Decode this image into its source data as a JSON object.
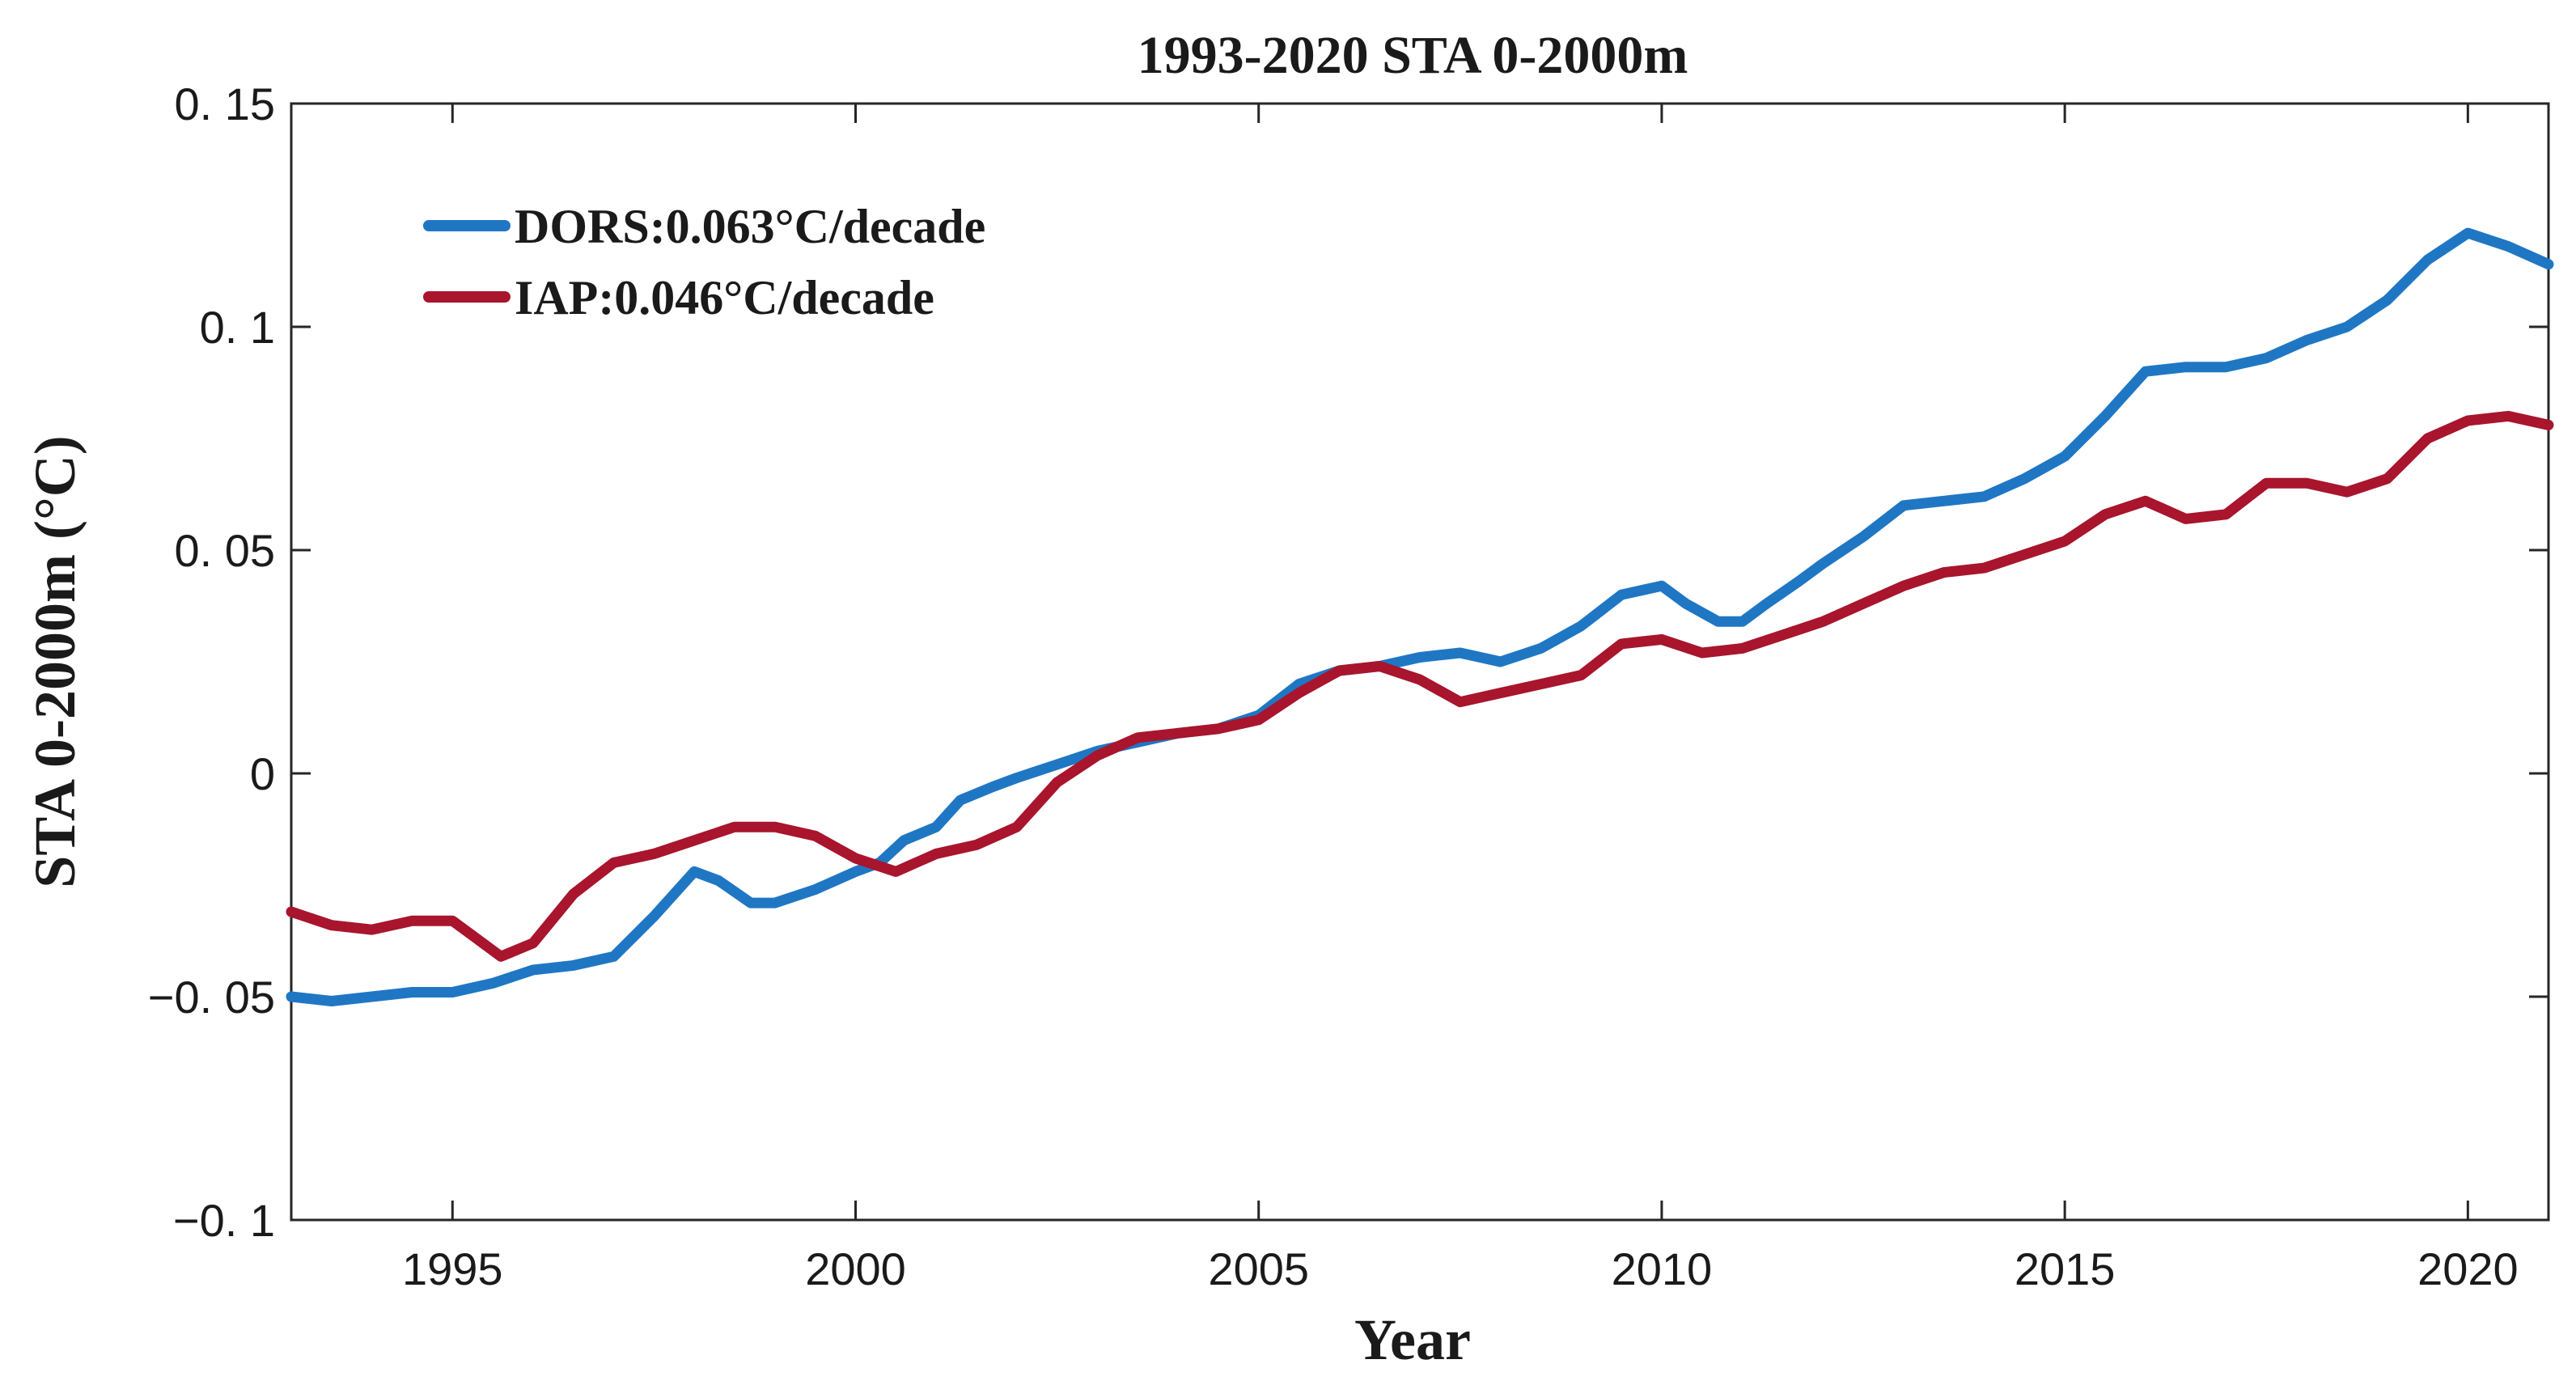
{
  "chart_data": {
    "type": "line",
    "title": "1993-2020 STA 0-2000m",
    "xlabel": "Year",
    "ylabel": "STA 0-2000m (°C)",
    "xlim": [
      1993,
      2021
    ],
    "ylim": [
      -0.1,
      0.15
    ],
    "xticks": [
      1995,
      2000,
      2005,
      2010,
      2015,
      2020
    ],
    "xtick_labels": [
      "1995",
      "2000",
      "2005",
      "2010",
      "2015",
      "2020"
    ],
    "yticks": [
      -0.1,
      -0.05,
      0,
      0.05,
      0.1,
      0.15
    ],
    "ytick_labels": [
      "−0. 1",
      "−0. 05",
      "0",
      "0. 05",
      "0. 1",
      "0. 15"
    ],
    "grid": false,
    "legend_position": "top-left",
    "series": [
      {
        "name": "DORS:0.063°C/decade",
        "color": "#1f77c4",
        "points": [
          [
            1993.0,
            -0.05
          ],
          [
            1993.5,
            -0.051
          ],
          [
            1994.0,
            -0.05
          ],
          [
            1994.5,
            -0.049
          ],
          [
            1995.0,
            -0.049
          ],
          [
            1995.5,
            -0.047
          ],
          [
            1996.0,
            -0.044
          ],
          [
            1996.5,
            -0.043
          ],
          [
            1997.0,
            -0.041
          ],
          [
            1997.5,
            -0.032
          ],
          [
            1998.0,
            -0.022
          ],
          [
            1998.3,
            -0.024
          ],
          [
            1998.7,
            -0.029
          ],
          [
            1999.0,
            -0.029
          ],
          [
            1999.5,
            -0.026
          ],
          [
            2000.0,
            -0.022
          ],
          [
            2000.3,
            -0.02
          ],
          [
            2000.6,
            -0.015
          ],
          [
            2001.0,
            -0.012
          ],
          [
            2001.3,
            -0.006
          ],
          [
            2001.7,
            -0.003
          ],
          [
            2002.0,
            -0.001
          ],
          [
            2002.5,
            0.002
          ],
          [
            2003.0,
            0.005
          ],
          [
            2003.5,
            0.007
          ],
          [
            2004.0,
            0.009
          ],
          [
            2004.5,
            0.01
          ],
          [
            2005.0,
            0.013
          ],
          [
            2005.5,
            0.02
          ],
          [
            2006.0,
            0.023
          ],
          [
            2006.5,
            0.024
          ],
          [
            2007.0,
            0.026
          ],
          [
            2007.5,
            0.027
          ],
          [
            2008.0,
            0.025
          ],
          [
            2008.5,
            0.028
          ],
          [
            2009.0,
            0.033
          ],
          [
            2009.5,
            0.04
          ],
          [
            2010.0,
            0.042
          ],
          [
            2010.3,
            0.038
          ],
          [
            2010.7,
            0.034
          ],
          [
            2011.0,
            0.034
          ],
          [
            2011.3,
            0.038
          ],
          [
            2011.7,
            0.043
          ],
          [
            2012.0,
            0.047
          ],
          [
            2012.5,
            0.053
          ],
          [
            2013.0,
            0.06
          ],
          [
            2013.5,
            0.061
          ],
          [
            2014.0,
            0.062
          ],
          [
            2014.5,
            0.066
          ],
          [
            2015.0,
            0.071
          ],
          [
            2015.5,
            0.08
          ],
          [
            2016.0,
            0.09
          ],
          [
            2016.5,
            0.091
          ],
          [
            2017.0,
            0.091
          ],
          [
            2017.5,
            0.093
          ],
          [
            2018.0,
            0.097
          ],
          [
            2018.5,
            0.1
          ],
          [
            2019.0,
            0.106
          ],
          [
            2019.5,
            0.115
          ],
          [
            2020.0,
            0.121
          ],
          [
            2020.5,
            0.118
          ],
          [
            2021.0,
            0.114
          ]
        ]
      },
      {
        "name": "IAP:0.046°C/decade",
        "color": "#a8152d",
        "points": [
          [
            1993.0,
            -0.031
          ],
          [
            1993.5,
            -0.034
          ],
          [
            1994.0,
            -0.035
          ],
          [
            1994.5,
            -0.033
          ],
          [
            1995.0,
            -0.033
          ],
          [
            1995.3,
            -0.037
          ],
          [
            1995.6,
            -0.041
          ],
          [
            1996.0,
            -0.038
          ],
          [
            1996.5,
            -0.027
          ],
          [
            1997.0,
            -0.02
          ],
          [
            1997.5,
            -0.018
          ],
          [
            1998.0,
            -0.015
          ],
          [
            1998.5,
            -0.012
          ],
          [
            1999.0,
            -0.012
          ],
          [
            1999.5,
            -0.014
          ],
          [
            2000.0,
            -0.019
          ],
          [
            2000.5,
            -0.022
          ],
          [
            2001.0,
            -0.018
          ],
          [
            2001.5,
            -0.016
          ],
          [
            2002.0,
            -0.012
          ],
          [
            2002.5,
            -0.002
          ],
          [
            2003.0,
            0.004
          ],
          [
            2003.5,
            0.008
          ],
          [
            2004.0,
            0.009
          ],
          [
            2004.5,
            0.01
          ],
          [
            2005.0,
            0.012
          ],
          [
            2005.5,
            0.018
          ],
          [
            2006.0,
            0.023
          ],
          [
            2006.5,
            0.024
          ],
          [
            2007.0,
            0.021
          ],
          [
            2007.5,
            0.016
          ],
          [
            2008.0,
            0.018
          ],
          [
            2008.5,
            0.02
          ],
          [
            2009.0,
            0.022
          ],
          [
            2009.5,
            0.029
          ],
          [
            2010.0,
            0.03
          ],
          [
            2010.5,
            0.027
          ],
          [
            2011.0,
            0.028
          ],
          [
            2011.5,
            0.031
          ],
          [
            2012.0,
            0.034
          ],
          [
            2012.5,
            0.038
          ],
          [
            2013.0,
            0.042
          ],
          [
            2013.5,
            0.045
          ],
          [
            2014.0,
            0.046
          ],
          [
            2014.5,
            0.049
          ],
          [
            2015.0,
            0.052
          ],
          [
            2015.5,
            0.058
          ],
          [
            2016.0,
            0.061
          ],
          [
            2016.5,
            0.057
          ],
          [
            2017.0,
            0.058
          ],
          [
            2017.5,
            0.065
          ],
          [
            2018.0,
            0.065
          ],
          [
            2018.5,
            0.063
          ],
          [
            2019.0,
            0.066
          ],
          [
            2019.5,
            0.075
          ],
          [
            2020.0,
            0.079
          ],
          [
            2020.5,
            0.08
          ],
          [
            2021.0,
            0.078
          ]
        ]
      }
    ]
  }
}
